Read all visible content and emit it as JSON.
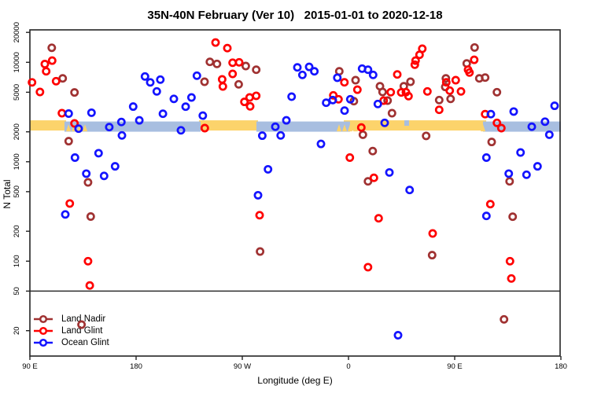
{
  "title": "35N-40N February (Ver 10)   2015-01-01 to 2020-12-18",
  "chart_data": {
    "type": "scatter",
    "title": "35N-40N February (Ver 10)   2015-01-01 to 2020-12-18",
    "xlabel": "Longitude (deg E)",
    "ylabel": "N Total",
    "y_scale": "log10",
    "x_axis": {
      "note": "longitude axis wraps eastward starting at 90E; positions are degrees east of 90E (0-450)",
      "tick_positions_deg": [
        0,
        90,
        180,
        270,
        360,
        450
      ],
      "tick_labels": [
        "90 E",
        "180",
        "90 W",
        "0",
        "90 E",
        "180"
      ],
      "range_deg": [
        0,
        450
      ]
    },
    "y_axis": {
      "ticks": [
        20,
        50,
        100,
        200,
        500,
        1000,
        2000,
        5000,
        10000,
        20000
      ],
      "tick_labels": [
        "20",
        "50",
        "100",
        "200",
        "500",
        "1000",
        "2000",
        "5000",
        "10000",
        "20000"
      ],
      "range": [
        11,
        21000
      ]
    },
    "reference_line_n": 50,
    "frame_color": "#242424",
    "bands": [
      {
        "label": "expected-sampling-gold",
        "color": "#FCD36B",
        "n_range": [
          2060,
          2610
        ],
        "segments_deg": [
          [
            0,
            30.7
          ],
          [
            143.3,
            193.3
          ],
          [
            266,
            386.7
          ]
        ]
      },
      {
        "label": "expected-sampling-blue",
        "color": "#A8BEE0",
        "n_range": [
          2060,
          2610
        ],
        "segments_deg": [
          [
            29.3,
            144.7
          ],
          [
            192,
            271.3
          ],
          [
            384,
            450
          ]
        ]
      }
    ],
    "band_transitions_deg": [
      [
        30.7,
        51.3
      ],
      [
        260,
        281.3
      ],
      [
        382,
        387
      ]
    ],
    "blue_notches_deg": [
      [
        317.3,
        321.3
      ]
    ],
    "legend": {
      "position": "bottom-left",
      "entries": [
        "Land Nadir",
        "Land Glint",
        "Ocean Glint"
      ]
    },
    "series": [
      {
        "name": "Land Nadir",
        "color": "#A03232",
        "points": [
          [
            18.5,
            14000
          ],
          [
            27.8,
            6890
          ],
          [
            37.8,
            4980
          ],
          [
            32.9,
            1610
          ],
          [
            49.3,
            620
          ],
          [
            51.5,
            281
          ],
          [
            43.7,
            23
          ],
          [
            148,
            6380
          ],
          [
            152.5,
            10100
          ],
          [
            158.5,
            9640
          ],
          [
            182.9,
            9180
          ],
          [
            191.8,
            8420
          ],
          [
            176.9,
            6010
          ],
          [
            195.1,
            125
          ],
          [
            262.2,
            8120
          ],
          [
            276,
            6610
          ],
          [
            296.7,
            5750
          ],
          [
            298.9,
            5030
          ],
          [
            274.5,
            4070
          ],
          [
            282.2,
            1870
          ],
          [
            290.5,
            1280
          ],
          [
            286.5,
            635
          ],
          [
            322.5,
            6380
          ],
          [
            316.9,
            5750
          ],
          [
            303.1,
            4120
          ],
          [
            306.9,
            3080
          ],
          [
            346.9,
            4170
          ],
          [
            352.5,
            6890
          ],
          [
            352,
            5650
          ],
          [
            356.5,
            4290
          ],
          [
            370.2,
            9750
          ],
          [
            335.8,
            1820
          ],
          [
            340.9,
            115
          ],
          [
            376.9,
            14100
          ],
          [
            380.9,
            6890
          ],
          [
            385.8,
            7020
          ],
          [
            395.8,
            5010
          ],
          [
            391.3,
            1580
          ],
          [
            406.5,
            635
          ],
          [
            409.1,
            280
          ],
          [
            401.8,
            26
          ]
        ]
      },
      {
        "name": "Land Glint",
        "color": "#FF0000",
        "points": [
          [
            18.9,
            10400
          ],
          [
            12.7,
            9600
          ],
          [
            13.8,
            8120
          ],
          [
            1.8,
            6290
          ],
          [
            22.2,
            6460
          ],
          [
            8.5,
            5030
          ],
          [
            27.1,
            3080
          ],
          [
            37.8,
            2430
          ],
          [
            33.8,
            380
          ],
          [
            49.3,
            100
          ],
          [
            50.7,
            57
          ],
          [
            148.2,
            2180
          ],
          [
            157.3,
            15800
          ],
          [
            167.3,
            13900
          ],
          [
            171.8,
            9900
          ],
          [
            177.3,
            10000
          ],
          [
            171.8,
            7650
          ],
          [
            162.9,
            6730
          ],
          [
            163.5,
            5720
          ],
          [
            186.2,
            4430
          ],
          [
            191.8,
            4600
          ],
          [
            181.8,
            4000
          ],
          [
            186.7,
            3610
          ],
          [
            194.7,
            290
          ],
          [
            266.5,
            6300
          ],
          [
            277.5,
            5310
          ],
          [
            257.1,
            4650
          ],
          [
            261.5,
            4250
          ],
          [
            299.8,
            4120
          ],
          [
            280.9,
            2210
          ],
          [
            271.1,
            1100
          ],
          [
            291.5,
            690
          ],
          [
            295.5,
            270
          ],
          [
            286.5,
            87
          ],
          [
            332.5,
            13700
          ],
          [
            330.2,
            11900
          ],
          [
            326.9,
            10400
          ],
          [
            326.2,
            9460
          ],
          [
            311.3,
            7550
          ],
          [
            318.7,
            5010
          ],
          [
            314.7,
            4980
          ],
          [
            305.8,
            5010
          ],
          [
            320.9,
            4570
          ],
          [
            336.9,
            5100
          ],
          [
            346.9,
            3330
          ],
          [
            371.3,
            8420
          ],
          [
            372.5,
            7890
          ],
          [
            352.9,
            6300
          ],
          [
            360.9,
            6610
          ],
          [
            355.8,
            5190
          ],
          [
            365.3,
            5100
          ],
          [
            341.3,
            190
          ],
          [
            376.5,
            10600
          ],
          [
            385.8,
            3010
          ],
          [
            395.8,
            2460
          ],
          [
            399.5,
            2180
          ],
          [
            390.2,
            375
          ],
          [
            406.9,
            100
          ],
          [
            408,
            67
          ]
        ]
      },
      {
        "name": "Ocean Glint",
        "color": "#1414FF",
        "points": [
          [
            32.9,
            3050
          ],
          [
            52.2,
            3110
          ],
          [
            41.3,
            2150
          ],
          [
            67.3,
            2230
          ],
          [
            38.2,
            1100
          ],
          [
            58.2,
            1220
          ],
          [
            72.2,
            900
          ],
          [
            47.8,
            760
          ],
          [
            62.9,
            720
          ],
          [
            30,
            295
          ],
          [
            97.5,
            7210
          ],
          [
            102,
            6290
          ],
          [
            141.5,
            7340
          ],
          [
            110.5,
            6700
          ],
          [
            107.5,
            5100
          ],
          [
            122,
            4290
          ],
          [
            136.9,
            4430
          ],
          [
            132,
            3580
          ],
          [
            87.5,
            3590
          ],
          [
            112.7,
            3040
          ],
          [
            92.7,
            2610
          ],
          [
            77.5,
            2510
          ],
          [
            146.5,
            2910
          ],
          [
            128,
            2070
          ],
          [
            78,
            1840
          ],
          [
            221.8,
            4510
          ],
          [
            217.3,
            2610
          ],
          [
            208,
            2250
          ],
          [
            212.5,
            1840
          ],
          [
            196.9,
            1830
          ],
          [
            201.8,
            840
          ],
          [
            193.3,
            460
          ],
          [
            226.7,
            8900
          ],
          [
            236.7,
            9000
          ],
          [
            230.9,
            7470
          ],
          [
            241.1,
            8120
          ],
          [
            260.5,
            7000
          ],
          [
            281.5,
            8640
          ],
          [
            286.5,
            8420
          ],
          [
            290.9,
            7470
          ],
          [
            256.7,
            4170
          ],
          [
            251.1,
            3920
          ],
          [
            271.5,
            4250
          ],
          [
            294.9,
            3810
          ],
          [
            266.7,
            3270
          ],
          [
            300.7,
            2460
          ],
          [
            246.7,
            1510
          ],
          [
            304.7,
            780
          ],
          [
            321.8,
            520
          ],
          [
            312,
            18
          ],
          [
            390.7,
            3010
          ],
          [
            410,
            3200
          ],
          [
            444.7,
            3650
          ],
          [
            436.5,
            2530
          ],
          [
            425.3,
            2250
          ],
          [
            440.2,
            1870
          ],
          [
            386.9,
            1100
          ],
          [
            415.8,
            1240
          ],
          [
            430.2,
            900
          ],
          [
            405.8,
            760
          ],
          [
            420.9,
            740
          ],
          [
            386.9,
            285
          ]
        ]
      }
    ]
  }
}
